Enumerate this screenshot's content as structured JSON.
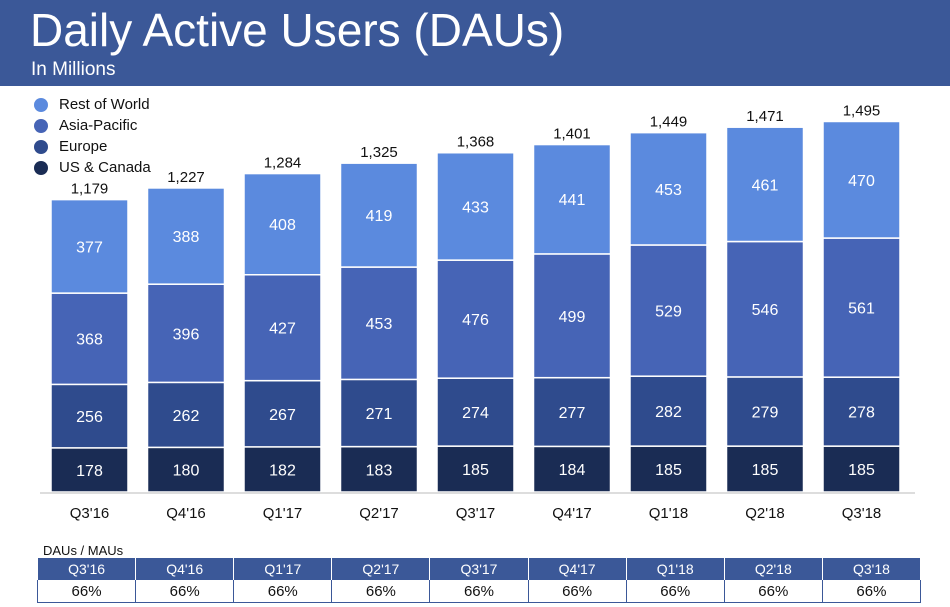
{
  "header": {
    "title": "Daily Active Users (DAUs)",
    "subtitle": "In Millions"
  },
  "colors": {
    "banner": "#3b5898",
    "rest_of_world": "#5b8ade",
    "asia_pacific": "#4664b6",
    "europe": "#2f4b8d",
    "us_canada": "#1a2c54",
    "table_header": "#3b5898"
  },
  "chart_data": {
    "type": "bar",
    "stacked": true,
    "title": "Daily Active Users (DAUs)",
    "subtitle": "In Millions",
    "categories": [
      "Q3'16",
      "Q4'16",
      "Q1'17",
      "Q2'17",
      "Q3'17",
      "Q4'17",
      "Q1'18",
      "Q2'18",
      "Q3'18"
    ],
    "series": [
      {
        "name": "US & Canada",
        "values": [
          178,
          180,
          182,
          183,
          185,
          184,
          185,
          185,
          185
        ],
        "color": "#1a2c54"
      },
      {
        "name": "Europe",
        "values": [
          256,
          262,
          267,
          271,
          274,
          277,
          282,
          279,
          278
        ],
        "color": "#2f4b8d"
      },
      {
        "name": "Asia-Pacific",
        "values": [
          368,
          396,
          427,
          453,
          476,
          499,
          529,
          546,
          561
        ],
        "color": "#4664b6"
      },
      {
        "name": "Rest of World",
        "values": [
          377,
          388,
          408,
          419,
          433,
          441,
          453,
          461,
          470
        ],
        "color": "#5b8ade"
      }
    ],
    "totals": [
      "1,179",
      "1,227",
      "1,284",
      "1,325",
      "1,368",
      "1,401",
      "1,449",
      "1,471",
      "1,495"
    ],
    "legend": [
      "Rest of World",
      "Asia-Pacific",
      "Europe",
      "US & Canada"
    ],
    "legend_position": "top-left",
    "ylim": [
      0,
      1600
    ],
    "grid": false,
    "xlabel": "",
    "ylabel": ""
  },
  "table": {
    "caption": "DAUs / MAUs",
    "headers": [
      "Q3'16",
      "Q4'16",
      "Q1'17",
      "Q2'17",
      "Q3'17",
      "Q4'17",
      "Q1'18",
      "Q2'18",
      "Q3'18"
    ],
    "values": [
      "66%",
      "66%",
      "66%",
      "66%",
      "66%",
      "66%",
      "66%",
      "66%",
      "66%"
    ]
  }
}
